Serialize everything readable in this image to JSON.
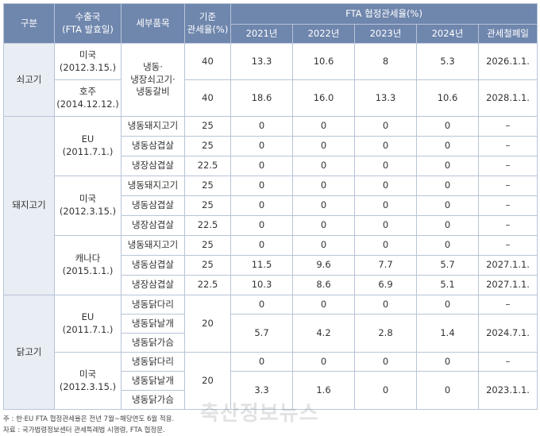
{
  "header": {
    "category": "구분",
    "country": "수출국\n(FTA 발효일)",
    "item": "세부품목",
    "base_rate": "기준\n관세율(%)",
    "fta_group": "FTA 협정관세율(%)",
    "y2021": "2021년",
    "y2022": "2022년",
    "y2023": "2023년",
    "y2024": "2024년",
    "abolish": "관세철폐일"
  },
  "beef": {
    "category": "쇠고기",
    "us_country": "미국\n(2012.3.15.)",
    "au_country": "호주\n(2014.12.12.)",
    "item": "냉동·\n냉장쇠고기·\n냉동갈비",
    "rows": [
      {
        "base": "40",
        "y2021": "13.3",
        "y2022": "10.6",
        "y2023": "8",
        "y2024": "5.3",
        "abolish": "2026.1.1."
      },
      {
        "base": "40",
        "y2021": "18.6",
        "y2022": "16.0",
        "y2023": "13.3",
        "y2024": "10.6",
        "abolish": "2028.1.1."
      }
    ]
  },
  "pork": {
    "category": "돼지고기",
    "eu": {
      "country": "EU\n(2011.7.1.)",
      "rows": [
        {
          "item": "냉동돼지고기",
          "base": "25",
          "y2021": "0",
          "y2022": "0",
          "y2023": "0",
          "y2024": "0",
          "abolish": "–"
        },
        {
          "item": "냉동삼겹살",
          "base": "25",
          "y2021": "0",
          "y2022": "0",
          "y2023": "0",
          "y2024": "0",
          "abolish": "–"
        },
        {
          "item": "냉장삼겹살",
          "base": "22.5",
          "y2021": "0",
          "y2022": "0",
          "y2023": "0",
          "y2024": "0",
          "abolish": "–"
        }
      ]
    },
    "us": {
      "country": "미국\n(2012.3.15.)",
      "rows": [
        {
          "item": "냉동돼지고기",
          "base": "25",
          "y2021": "0",
          "y2022": "0",
          "y2023": "0",
          "y2024": "0",
          "abolish": "–"
        },
        {
          "item": "냉동삼겹살",
          "base": "25",
          "y2021": "0",
          "y2022": "0",
          "y2023": "0",
          "y2024": "0",
          "abolish": "–"
        },
        {
          "item": "냉장삼겹살",
          "base": "22.5",
          "y2021": "0",
          "y2022": "0",
          "y2023": "0",
          "y2024": "0",
          "abolish": "–"
        }
      ]
    },
    "ca": {
      "country": "캐나다\n(2015.1.1.)",
      "rows": [
        {
          "item": "냉동돼지고기",
          "base": "25",
          "y2021": "0",
          "y2022": "0",
          "y2023": "0",
          "y2024": "0",
          "abolish": "–"
        },
        {
          "item": "냉동삼겹살",
          "base": "25",
          "y2021": "11.5",
          "y2022": "9.6",
          "y2023": "7.7",
          "y2024": "5.7",
          "abolish": "2027.1.1."
        },
        {
          "item": "냉장삼겹살",
          "base": "22.5",
          "y2021": "10.3",
          "y2022": "8.6",
          "y2023": "6.9",
          "y2024": "5.1",
          "abolish": "2027.1.1."
        }
      ]
    }
  },
  "chicken": {
    "category": "닭고기",
    "eu": {
      "country": "EU\n(2011.7.1.)",
      "items": [
        "냉동닭다리",
        "냉동닭날개",
        "냉동닭가슴"
      ],
      "base": "20",
      "row1": {
        "y2021": "0",
        "y2022": "0",
        "y2023": "0",
        "y2024": "0",
        "abolish": "–"
      },
      "row2": {
        "y2021": "5.7",
        "y2022": "4.2",
        "y2023": "2.8",
        "y2024": "1.4",
        "abolish": "2024.7.1."
      }
    },
    "us": {
      "country": "미국\n(2012.3.15.)",
      "items": [
        "냉동닭다리",
        "냉동닭날개",
        "냉동닭가슴"
      ],
      "base": "20",
      "row1": {
        "y2021": "0",
        "y2022": "0",
        "y2023": "0",
        "y2024": "0",
        "abolish": "–"
      },
      "row2": {
        "y2021": "3.3",
        "y2022": "1.6",
        "y2023": "0",
        "y2024": "0",
        "abolish": "2023.1.1."
      }
    }
  },
  "notes": {
    "note1": "주 : 한·EU FTA 협정관세율은 전년 7월~해당연도 6월 적용.",
    "note2": "자료 : 국가법령정보센터 관세특례법 시행령, FTA 협정문."
  },
  "watermark": "축산정보뉴스"
}
